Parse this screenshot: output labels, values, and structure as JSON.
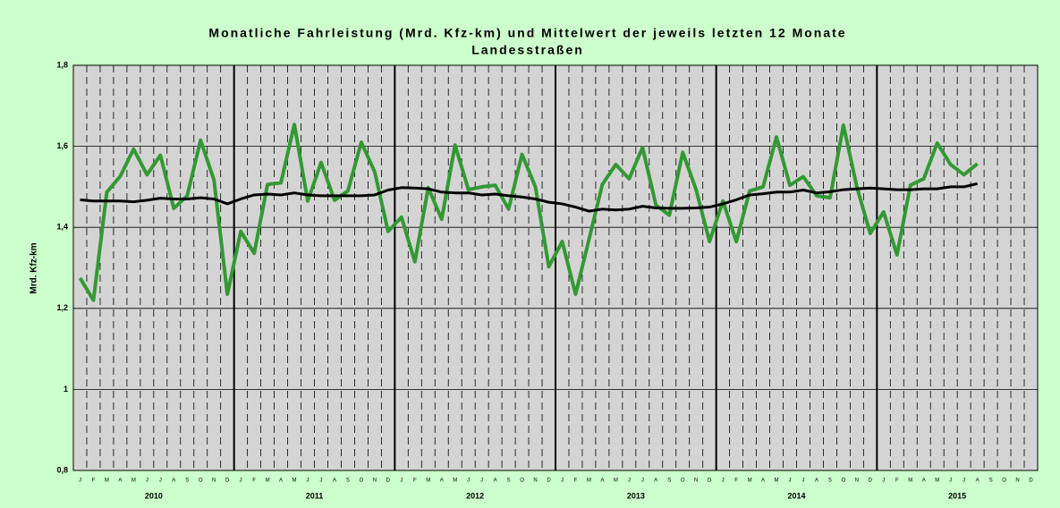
{
  "chart_data": {
    "type": "line",
    "title": [
      "Monatliche Fahrleistung (Mrd. Kfz-km) und Mittelwert der jeweils letzten 12 Monate",
      "Landesstraßen"
    ],
    "y_label": "Mrd. Kfz-km",
    "categories": [
      "J",
      "F",
      "M",
      "A",
      "M",
      "J",
      "J",
      "A",
      "S",
      "O",
      "N",
      "D",
      "J",
      "F",
      "M",
      "A",
      "M",
      "J",
      "J",
      "A",
      "S",
      "O",
      "N",
      "D",
      "J",
      "F",
      "M",
      "A",
      "M",
      "J",
      "J",
      "A",
      "S",
      "O",
      "N",
      "D",
      "J",
      "F",
      "M",
      "A",
      "M",
      "J",
      "J",
      "A",
      "S",
      "O",
      "N",
      "D",
      "J",
      "F",
      "M",
      "A",
      "M",
      "J",
      "J",
      "A",
      "S",
      "O",
      "N",
      "D",
      "J",
      "F",
      "M",
      "A",
      "M",
      "J",
      "J",
      "A",
      "S",
      "O",
      "N",
      "D"
    ],
    "years": [
      "2010",
      "2011",
      "2012",
      "2013",
      "2014",
      "2015"
    ],
    "series": [
      {
        "color": "#339933",
        "values": [
          1.275,
          1.22,
          1.487,
          1.526,
          1.593,
          1.53,
          1.578,
          1.447,
          1.478,
          1.615,
          1.517,
          1.235,
          1.39,
          1.336,
          1.506,
          1.51,
          1.654,
          1.465,
          1.56,
          1.467,
          1.49,
          1.61,
          1.537,
          1.39,
          1.425,
          1.315,
          1.498,
          1.42,
          1.603,
          1.493,
          1.5,
          1.504,
          1.445,
          1.58,
          1.5,
          1.303,
          1.365,
          1.235,
          1.37,
          1.506,
          1.555,
          1.52,
          1.597,
          1.455,
          1.43,
          1.585,
          1.493,
          1.365,
          1.465,
          1.365,
          1.49,
          1.5,
          1.623,
          1.504,
          1.525,
          1.478,
          1.473,
          1.652,
          1.5,
          1.385,
          1.438,
          1.332,
          1.504,
          1.52,
          1.608,
          1.555,
          1.53,
          1.557,
          null,
          null,
          null,
          null
        ]
      },
      {
        "color": "#000000",
        "values": [
          1.468,
          1.465,
          1.465,
          1.465,
          1.463,
          1.467,
          1.472,
          1.47,
          1.47,
          1.473,
          1.47,
          1.458,
          1.47,
          1.48,
          1.482,
          1.48,
          1.485,
          1.48,
          1.478,
          1.478,
          1.478,
          1.478,
          1.48,
          1.492,
          1.498,
          1.497,
          1.495,
          1.487,
          1.485,
          1.485,
          1.48,
          1.482,
          1.478,
          1.475,
          1.47,
          1.462,
          1.458,
          1.45,
          1.44,
          1.445,
          1.443,
          1.445,
          1.452,
          1.448,
          1.447,
          1.447,
          1.448,
          1.45,
          1.458,
          1.468,
          1.48,
          1.483,
          1.487,
          1.487,
          1.492,
          1.485,
          1.488,
          1.493,
          1.495,
          1.497,
          1.495,
          1.493,
          1.493,
          1.495,
          1.495,
          1.5,
          1.5,
          1.508,
          null,
          null,
          null,
          null
        ]
      }
    ],
    "ylim": [
      0.8,
      1.8
    ],
    "yticks": [
      {
        "value": 0.8,
        "label": "0,8"
      },
      1,
      {
        "value": 1.2,
        "label": "1,2"
      },
      {
        "value": 1.4,
        "label": "1,4"
      },
      {
        "value": 1.6,
        "label": "1,6"
      },
      {
        "value": 1.8,
        "label": "1,8"
      }
    ],
    "grid": true
  }
}
